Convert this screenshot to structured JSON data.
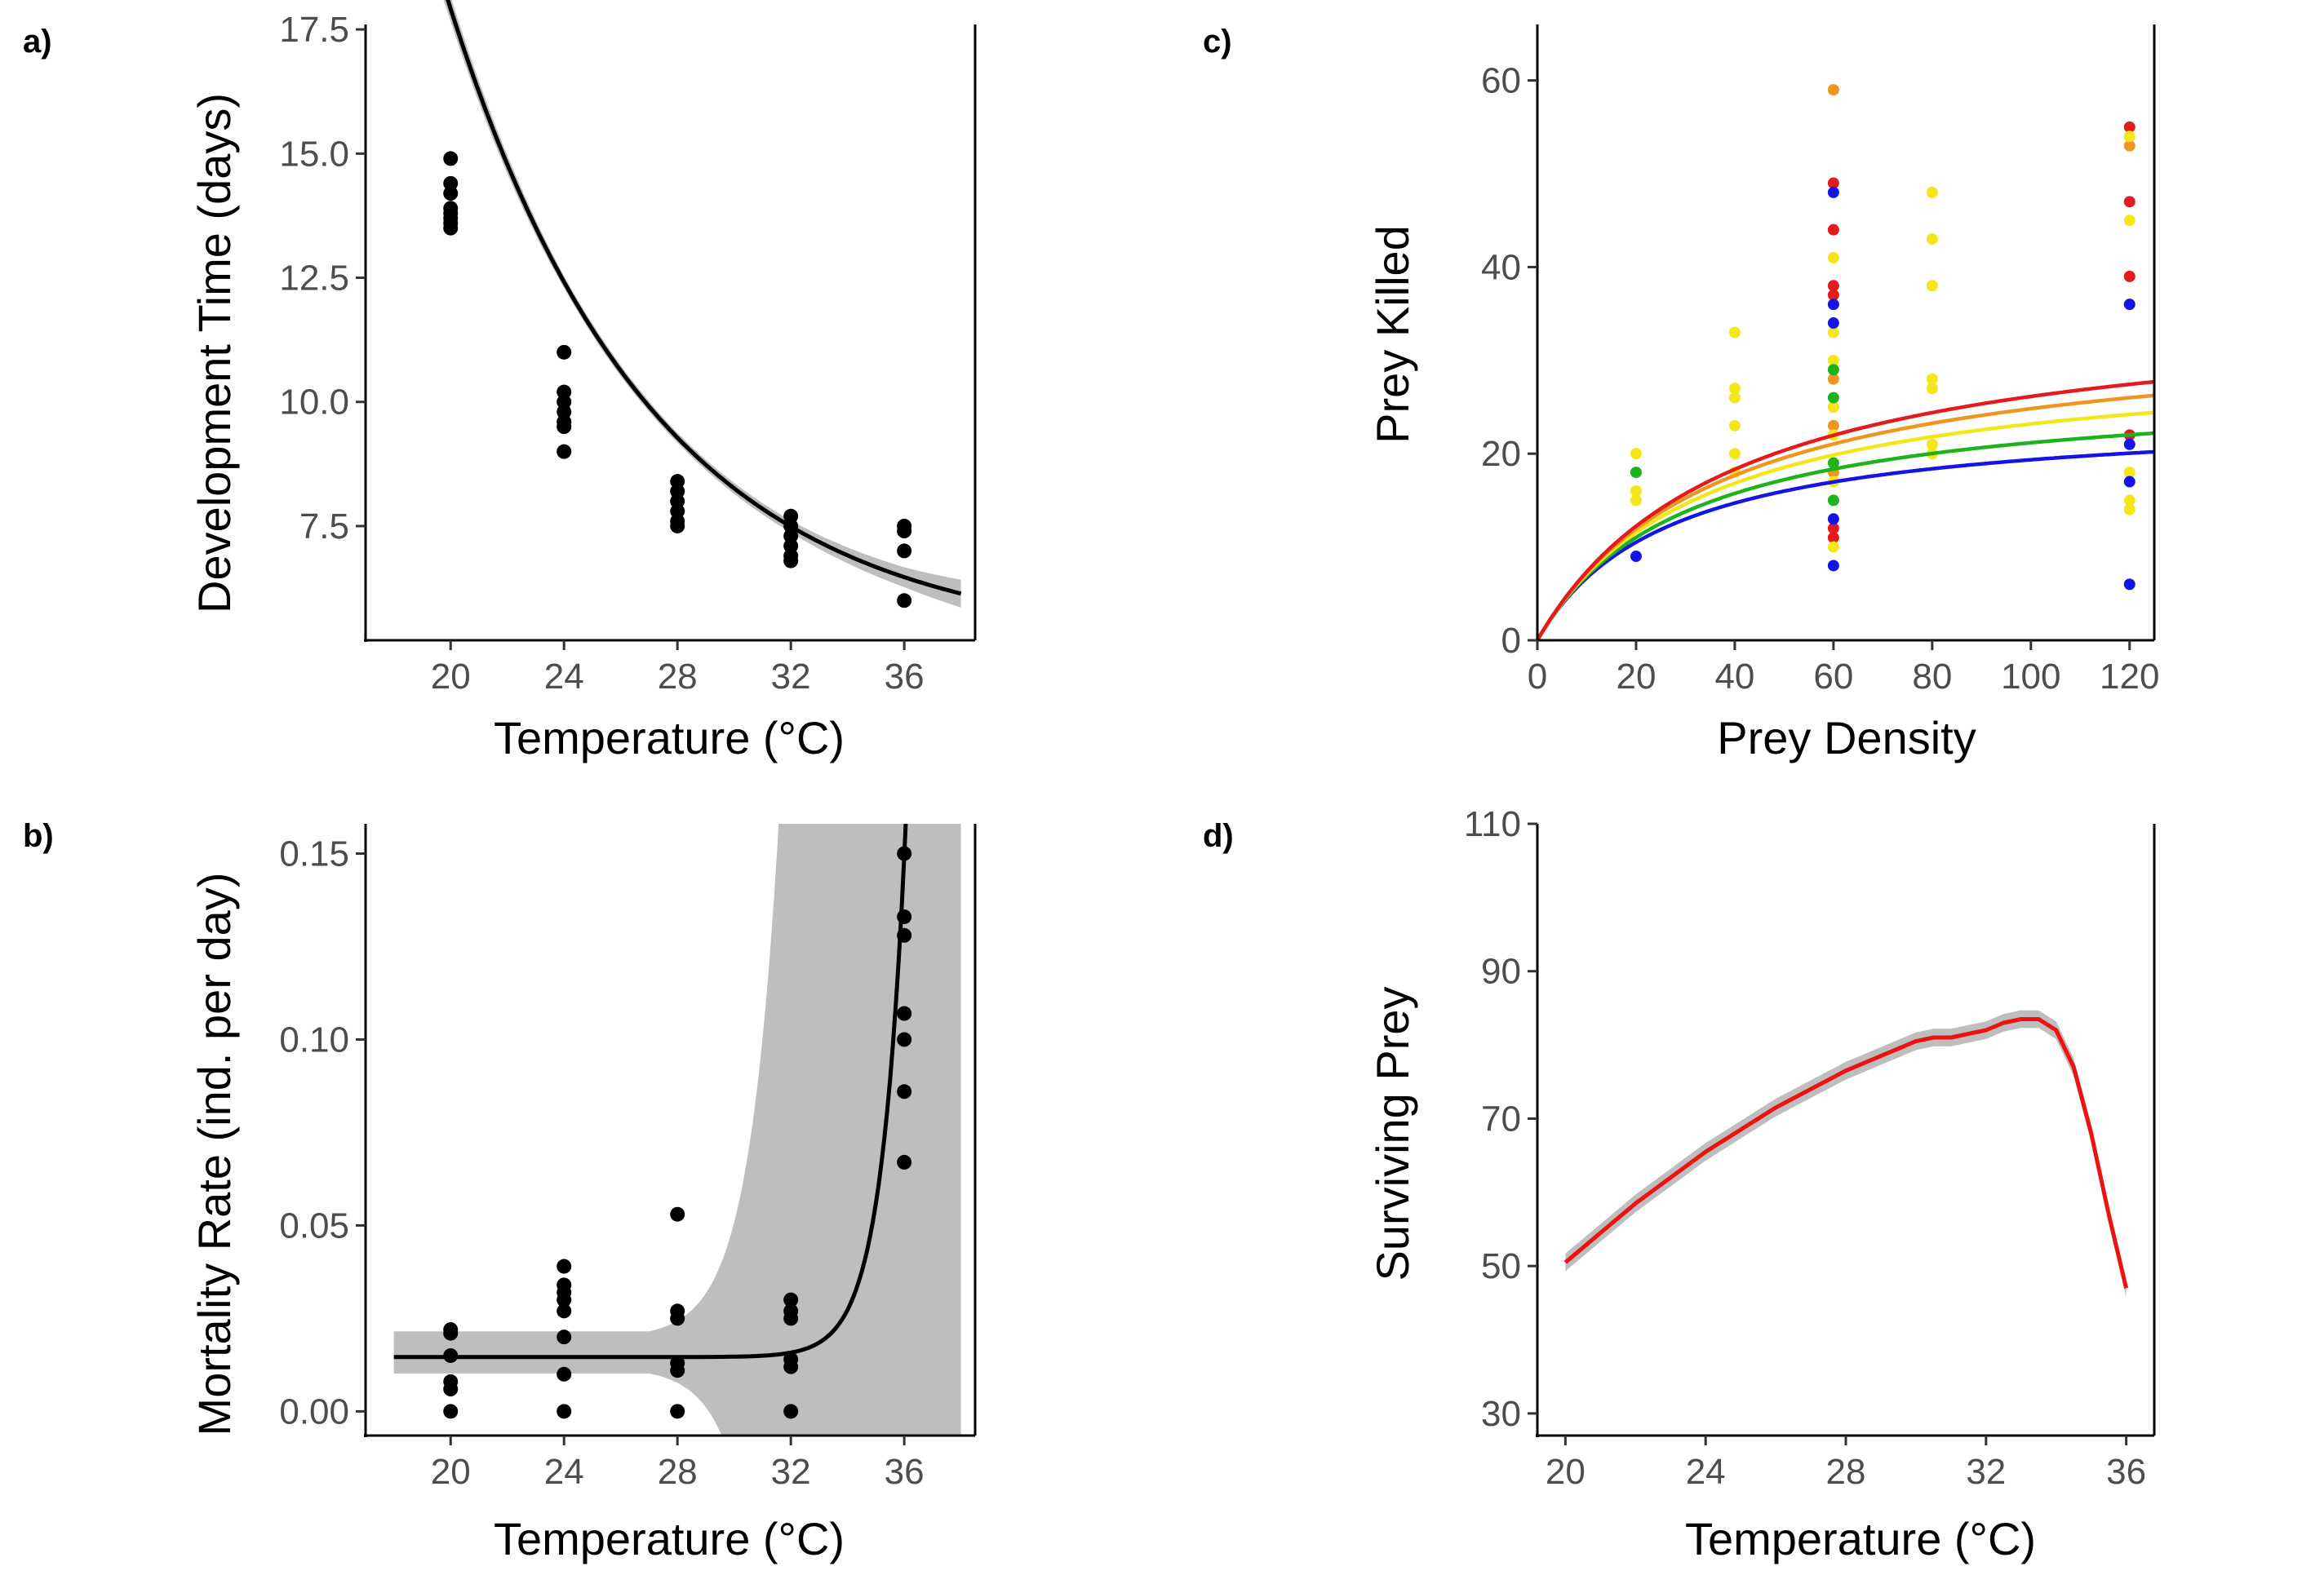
{
  "chart_data": [
    {
      "panel": "a)",
      "type": "scatter",
      "xlabel": "Temperature (°C)",
      "ylabel": "Development Time (days)",
      "xlim": [
        17,
        38.5
      ],
      "ylim": [
        5.2,
        17.6
      ],
      "xticks": [
        20,
        24,
        28,
        32,
        36
      ],
      "yticks": [
        7.5,
        10.0,
        12.5,
        15.0,
        17.5
      ],
      "ytick_labels": [
        "7.5",
        "10.0",
        "12.5",
        "15.0",
        "17.5"
      ],
      "points": [
        [
          20,
          14.9
        ],
        [
          20,
          14.4
        ],
        [
          20,
          14.2
        ],
        [
          20,
          13.9
        ],
        [
          20,
          13.8
        ],
        [
          20,
          13.6
        ],
        [
          20,
          13.5
        ],
        [
          20,
          13.7
        ],
        [
          24,
          11.0
        ],
        [
          24,
          10.2
        ],
        [
          24,
          10.0
        ],
        [
          24,
          9.8
        ],
        [
          24,
          9.6
        ],
        [
          24,
          9.5
        ],
        [
          24,
          9.0
        ],
        [
          28,
          8.4
        ],
        [
          28,
          8.2
        ],
        [
          28,
          8.0
        ],
        [
          28,
          7.8
        ],
        [
          28,
          7.6
        ],
        [
          28,
          7.5
        ],
        [
          32,
          7.7
        ],
        [
          32,
          7.5
        ],
        [
          32,
          7.3
        ],
        [
          32,
          7.1
        ],
        [
          32,
          6.9
        ],
        [
          32,
          6.8
        ],
        [
          36,
          7.5
        ],
        [
          36,
          7.4
        ],
        [
          36,
          7.0
        ],
        [
          36,
          6.0
        ]
      ],
      "fit": {
        "x_range": [
          18,
          38
        ],
        "model": "exponential",
        "a": 2.06,
        "b": 0.1405,
        "c": 5.12
      },
      "ci_halfwidth": {
        "x": [
          18,
          20,
          24,
          28,
          32,
          36,
          38
        ],
        "w": [
          0.55,
          0.25,
          0.12,
          0.1,
          0.12,
          0.2,
          0.28
        ]
      },
      "line_color": "#000000",
      "ribbon_color": "#bebebe"
    },
    {
      "panel": "b)",
      "type": "scatter",
      "xlabel": "Temperature (°C)",
      "ylabel": "Mortality Rate (ind. per day)",
      "xlim": [
        17,
        38.5
      ],
      "ylim": [
        -0.0065,
        0.158
      ],
      "xticks": [
        20,
        24,
        28,
        32,
        36
      ],
      "yticks": [
        0.0,
        0.05,
        0.1,
        0.15
      ],
      "ytick_labels": [
        "0.00",
        "0.05",
        "0.10",
        "0.15"
      ],
      "points": [
        [
          20,
          0.022
        ],
        [
          20,
          0.021
        ],
        [
          20,
          0.015
        ],
        [
          20,
          0.008
        ],
        [
          20,
          0.006
        ],
        [
          20,
          0.0
        ],
        [
          24,
          0.039
        ],
        [
          24,
          0.034
        ],
        [
          24,
          0.032
        ],
        [
          24,
          0.03
        ],
        [
          24,
          0.027
        ],
        [
          24,
          0.02
        ],
        [
          24,
          0.01
        ],
        [
          24,
          0.0
        ],
        [
          28,
          0.053
        ],
        [
          28,
          0.027
        ],
        [
          28,
          0.025
        ],
        [
          28,
          0.013
        ],
        [
          28,
          0.011
        ],
        [
          28,
          0.0
        ],
        [
          32,
          0.03
        ],
        [
          32,
          0.027
        ],
        [
          32,
          0.025
        ],
        [
          32,
          0.014
        ],
        [
          32,
          0.012
        ],
        [
          32,
          0.0
        ],
        [
          36,
          0.15
        ],
        [
          36,
          0.133
        ],
        [
          36,
          0.128
        ],
        [
          36,
          0.107
        ],
        [
          36,
          0.1
        ],
        [
          36,
          0.086
        ],
        [
          36,
          0.067
        ]
      ],
      "fit": {
        "x_range": [
          18,
          38
        ],
        "model": "exponential",
        "base": 0.0158,
        "k": 0.0012,
        "t0": 32,
        "rate": 1.18
      },
      "line_color": "#000000",
      "ribbon_color": "#bebebe"
    },
    {
      "panel": "c)",
      "type": "scatter",
      "xlabel": "Prey Density",
      "ylabel": "Prey Killed",
      "xlim": [
        0,
        125
      ],
      "ylim": [
        0,
        66
      ],
      "xticks": [
        0,
        20,
        40,
        60,
        80,
        100,
        120
      ],
      "yticks": [
        0,
        20,
        40,
        60
      ],
      "series": [
        {
          "color": "#e41a1c",
          "asymptote": 36.5,
          "points": [
            [
              60,
              49
            ],
            [
              60,
              44
            ],
            [
              60,
              38
            ],
            [
              60,
              37
            ],
            [
              60,
              12
            ],
            [
              60,
              11
            ],
            [
              120,
              55
            ],
            [
              120,
              47
            ],
            [
              120,
              39
            ],
            [
              120,
              22
            ]
          ]
        },
        {
          "color": "#f0961e",
          "asymptote": 34.0,
          "points": [
            [
              60,
              59
            ],
            [
              60,
              28
            ],
            [
              60,
              25
            ],
            [
              60,
              23
            ],
            [
              60,
              18
            ],
            [
              120,
              53
            ]
          ]
        },
        {
          "color": "#f5e61a",
          "asymptote": 31.0,
          "points": [
            [
              20,
              20
            ],
            [
              20,
              16
            ],
            [
              20,
              15
            ],
            [
              40,
              33
            ],
            [
              40,
              27
            ],
            [
              40,
              26
            ],
            [
              40,
              23
            ],
            [
              40,
              20
            ],
            [
              40,
              18
            ],
            [
              60,
              41
            ],
            [
              60,
              36
            ],
            [
              60,
              33
            ],
            [
              60,
              30
            ],
            [
              60,
              25
            ],
            [
              60,
              22
            ],
            [
              60,
              17
            ],
            [
              60,
              15
            ],
            [
              60,
              10
            ],
            [
              80,
              48
            ],
            [
              80,
              43
            ],
            [
              80,
              38
            ],
            [
              80,
              28
            ],
            [
              80,
              27
            ],
            [
              80,
              21
            ],
            [
              80,
              20
            ],
            [
              120,
              54
            ],
            [
              120,
              45
            ],
            [
              120,
              18
            ],
            [
              120,
              17
            ],
            [
              120,
              15
            ],
            [
              120,
              14
            ]
          ]
        },
        {
          "color": "#1db31d",
          "asymptote": 27.5,
          "points": [
            [
              20,
              18
            ],
            [
              60,
              29
            ],
            [
              60,
              26
            ],
            [
              60,
              19
            ],
            [
              60,
              15
            ]
          ]
        },
        {
          "color": "#1414e6",
          "asymptote": 24.5,
          "points": [
            [
              20,
              9
            ],
            [
              60,
              48
            ],
            [
              60,
              36
            ],
            [
              60,
              34
            ],
            [
              60,
              13
            ],
            [
              60,
              8
            ],
            [
              120,
              36
            ],
            [
              120,
              21
            ],
            [
              120,
              17
            ],
            [
              120,
              6
            ]
          ]
        }
      ],
      "fit": {
        "model": "holling-type-2",
        "initial_slope": 0.92
      }
    },
    {
      "panel": "d)",
      "type": "line",
      "xlabel": "Temperature (°C)",
      "ylabel": "Surviving Prey",
      "xlim": [
        19.2,
        36.8
      ],
      "ylim": [
        27,
        110
      ],
      "xticks": [
        20,
        24,
        28,
        32,
        36
      ],
      "yticks": [
        30,
        50,
        70,
        90,
        110
      ],
      "x": [
        20,
        21,
        22,
        23,
        24,
        25,
        26,
        27,
        28,
        29,
        30,
        30.5,
        31,
        31.5,
        32,
        32.5,
        33,
        33.5,
        34,
        34.5,
        35,
        35.5,
        36
      ],
      "y": [
        50.5,
        54.5,
        58.5,
        62.0,
        65.5,
        68.5,
        71.5,
        74.0,
        76.5,
        78.5,
        80.5,
        81.0,
        81.0,
        81.5,
        82.0,
        83.0,
        83.5,
        83.5,
        82.0,
        77.0,
        68.0,
        57.0,
        47.0
      ],
      "line_color": "#ee1111",
      "ribbon_color": "#bebebe"
    }
  ]
}
